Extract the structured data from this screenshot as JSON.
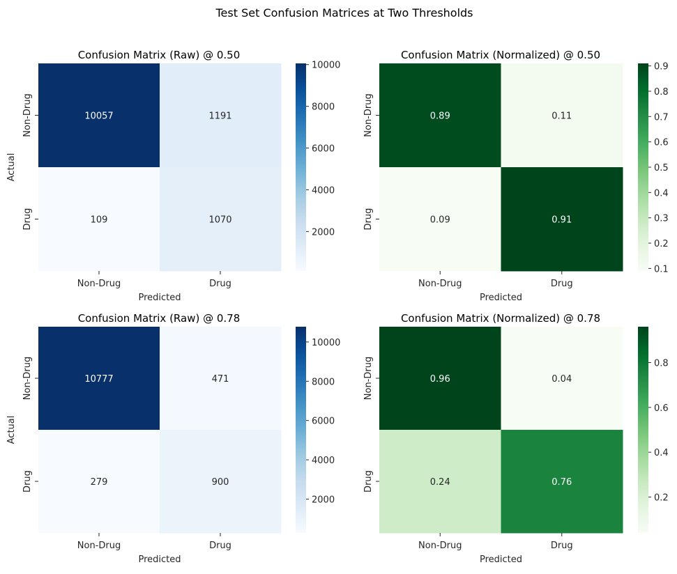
{
  "figure": {
    "suptitle": "Test Set Confusion Matrices at Two Thresholds"
  },
  "chart_data": [
    {
      "type": "heatmap",
      "title": "Confusion Matrix (Raw) @ 0.50",
      "xlabel": "Predicted",
      "ylabel": "Actual",
      "x_categories": [
        "Non-Drug",
        "Drug"
      ],
      "y_categories": [
        "Non-Drug",
        "Drug"
      ],
      "values": [
        [
          10057,
          1191
        ],
        [
          109,
          1070
        ]
      ],
      "labels": [
        [
          "10057",
          "1191"
        ],
        [
          "109",
          "1070"
        ]
      ],
      "colormap": "Blues",
      "colorbar": {
        "min": 109,
        "max": 10057,
        "ticks": [
          2000,
          4000,
          6000,
          8000,
          10000
        ]
      }
    },
    {
      "type": "heatmap",
      "title": "Confusion Matrix (Normalized) @ 0.50",
      "xlabel": "Predicted",
      "ylabel": "",
      "x_categories": [
        "Non-Drug",
        "Drug"
      ],
      "y_categories": [
        "Non-Drug",
        "Drug"
      ],
      "values": [
        [
          0.89,
          0.11
        ],
        [
          0.09,
          0.91
        ]
      ],
      "labels": [
        [
          "0.89",
          "0.11"
        ],
        [
          "0.09",
          "0.91"
        ]
      ],
      "colormap": "Greens",
      "colorbar": {
        "min": 0.09,
        "max": 0.91,
        "ticks": [
          0.1,
          0.2,
          0.3,
          0.4,
          0.5,
          0.6,
          0.7,
          0.8,
          0.9
        ]
      }
    },
    {
      "type": "heatmap",
      "title": "Confusion Matrix (Raw) @ 0.78",
      "xlabel": "Predicted",
      "ylabel": "Actual",
      "x_categories": [
        "Non-Drug",
        "Drug"
      ],
      "y_categories": [
        "Non-Drug",
        "Drug"
      ],
      "values": [
        [
          10777,
          471
        ],
        [
          279,
          900
        ]
      ],
      "labels": [
        [
          "10777",
          "471"
        ],
        [
          "279",
          "900"
        ]
      ],
      "colormap": "Blues",
      "colorbar": {
        "min": 279,
        "max": 10777,
        "ticks": [
          2000,
          4000,
          6000,
          8000,
          10000
        ]
      }
    },
    {
      "type": "heatmap",
      "title": "Confusion Matrix (Normalized) @ 0.78",
      "xlabel": "Predicted",
      "ylabel": "",
      "x_categories": [
        "Non-Drug",
        "Drug"
      ],
      "y_categories": [
        "Non-Drug",
        "Drug"
      ],
      "values": [
        [
          0.96,
          0.04
        ],
        [
          0.24,
          0.76
        ]
      ],
      "labels": [
        [
          "0.96",
          "0.04"
        ],
        [
          "0.24",
          "0.76"
        ]
      ],
      "colormap": "Greens",
      "colorbar": {
        "min": 0.04,
        "max": 0.96,
        "ticks": [
          0.2,
          0.4,
          0.6,
          0.8
        ]
      }
    }
  ]
}
